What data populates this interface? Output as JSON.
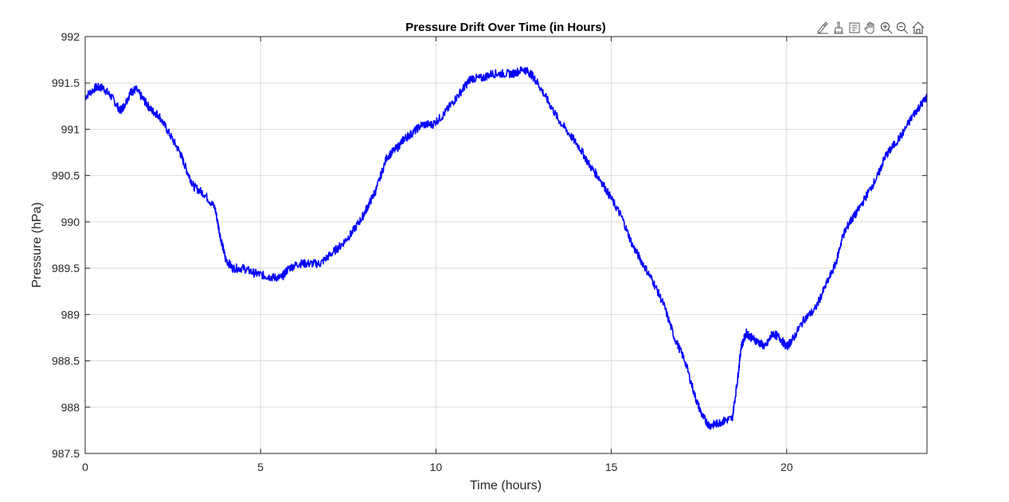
{
  "toolbar": [
    {
      "name": "export-icon"
    },
    {
      "name": "brush-icon"
    },
    {
      "name": "datatip-icon"
    },
    {
      "name": "pan-hand-icon"
    },
    {
      "name": "zoom-in-icon"
    },
    {
      "name": "zoom-out-icon"
    },
    {
      "name": "home-icon"
    }
  ],
  "chart_data": {
    "type": "line",
    "title": "Pressure Drift Over Time (in Hours)",
    "xlabel": "Time (hours)",
    "ylabel": "Pressure (hPa)",
    "xlim": [
      0,
      24
    ],
    "ylim": [
      987.5,
      992
    ],
    "xticks": [
      0,
      5,
      10,
      15,
      20
    ],
    "yticks": [
      987.5,
      988,
      988.5,
      989,
      989.5,
      990,
      990.5,
      991,
      991.5,
      992
    ],
    "grid": true,
    "colors": {
      "line": "#0000ff",
      "grid": "#dcdcdc",
      "axis": "#262626"
    },
    "series": [
      {
        "x": [
          0,
          0.3,
          0.5,
          0.75,
          1.0,
          1.1,
          1.3,
          1.45,
          1.7,
          1.9,
          2.1,
          2.4,
          2.7,
          2.9,
          3.1,
          3.4,
          3.7,
          3.85,
          4.0,
          4.2,
          4.5,
          4.8,
          5.1,
          5.35,
          5.6,
          5.8,
          6.1,
          6.4,
          6.7,
          7.0,
          7.3,
          7.6,
          7.9,
          8.1,
          8.3,
          8.6,
          8.9,
          9.1,
          9.3,
          9.6,
          9.9,
          10.2,
          10.5,
          10.8,
          11.0,
          11.3,
          11.6,
          11.9,
          12.2,
          12.5,
          12.7,
          12.9,
          13.2,
          13.5,
          13.8,
          14.1,
          14.4,
          14.7,
          15.0,
          15.3,
          15.6,
          15.9,
          16.2,
          16.5,
          16.8,
          17.1,
          17.4,
          17.6,
          17.8,
          18.0,
          18.2,
          18.45,
          18.6,
          18.7,
          18.85,
          19.0,
          19.2,
          19.4,
          19.6,
          19.8,
          20.0,
          20.2,
          20.5,
          20.8,
          21.1,
          21.4,
          21.6,
          21.8,
          22.0,
          22.3,
          22.6,
          22.8,
          23.0,
          23.3,
          23.6,
          23.8,
          24.0
        ],
        "y": [
          991.35,
          991.45,
          991.45,
          991.35,
          991.2,
          991.25,
          991.4,
          991.43,
          991.3,
          991.2,
          991.15,
          990.95,
          990.75,
          990.55,
          990.38,
          990.3,
          990.15,
          989.85,
          989.6,
          989.5,
          989.5,
          989.45,
          989.42,
          989.4,
          989.4,
          989.5,
          989.55,
          989.55,
          989.55,
          989.65,
          989.75,
          989.88,
          990.05,
          990.2,
          990.35,
          990.7,
          990.8,
          990.9,
          990.95,
          991.05,
          991.05,
          991.15,
          991.3,
          991.45,
          991.55,
          991.55,
          991.6,
          991.6,
          991.6,
          991.65,
          991.6,
          991.5,
          991.3,
          991.1,
          990.95,
          990.8,
          990.6,
          990.45,
          990.25,
          990.05,
          989.75,
          989.55,
          989.35,
          989.1,
          988.75,
          988.5,
          988.1,
          987.9,
          987.8,
          987.82,
          987.85,
          987.88,
          988.3,
          988.65,
          988.8,
          988.75,
          988.7,
          988.65,
          988.8,
          988.75,
          988.65,
          988.75,
          988.95,
          989.05,
          989.3,
          989.55,
          989.85,
          990.0,
          990.1,
          990.3,
          990.5,
          990.7,
          990.8,
          990.95,
          991.15,
          991.25,
          991.35
        ]
      }
    ]
  }
}
